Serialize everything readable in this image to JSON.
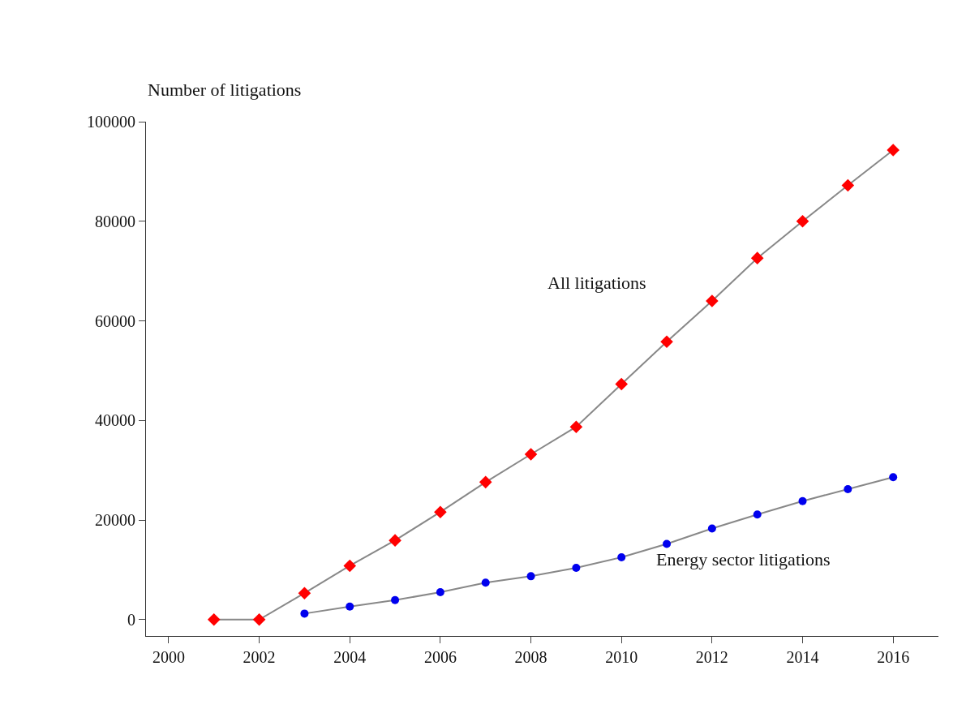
{
  "chart_data": {
    "type": "line",
    "ylabel": "Number of litigations",
    "x": [
      2001,
      2002,
      2003,
      2004,
      2005,
      2006,
      2007,
      2008,
      2009,
      2010,
      2011,
      2012,
      2013,
      2014,
      2015,
      2016
    ],
    "series": [
      {
        "color": "#ff0000",
        "marker": "diamond",
        "values": [
          0,
          0,
          5300,
          10800,
          15900,
          21600,
          27600,
          33200,
          38700,
          47300,
          55800,
          64000,
          72600,
          80000,
          87200,
          94300
        ]
      },
      {
        "color": "#0000ee",
        "marker": "circle",
        "values": [
          null,
          null,
          1200,
          2600,
          3900,
          5500,
          7400,
          8700,
          10400,
          12500,
          15200,
          18300,
          21100,
          23800,
          26200,
          28600
        ]
      }
    ],
    "annotations": [
      "All litigations",
      "Energy sector litigations"
    ],
    "xlim": [
      1999.5,
      2017
    ],
    "xticks": [
      2000,
      2002,
      2004,
      2006,
      2008,
      2010,
      2012,
      2014,
      2016
    ],
    "ylim": [
      -3300,
      100000
    ],
    "yticks": [
      0,
      20000,
      40000,
      60000,
      80000,
      100000
    ],
    "log": false
  }
}
